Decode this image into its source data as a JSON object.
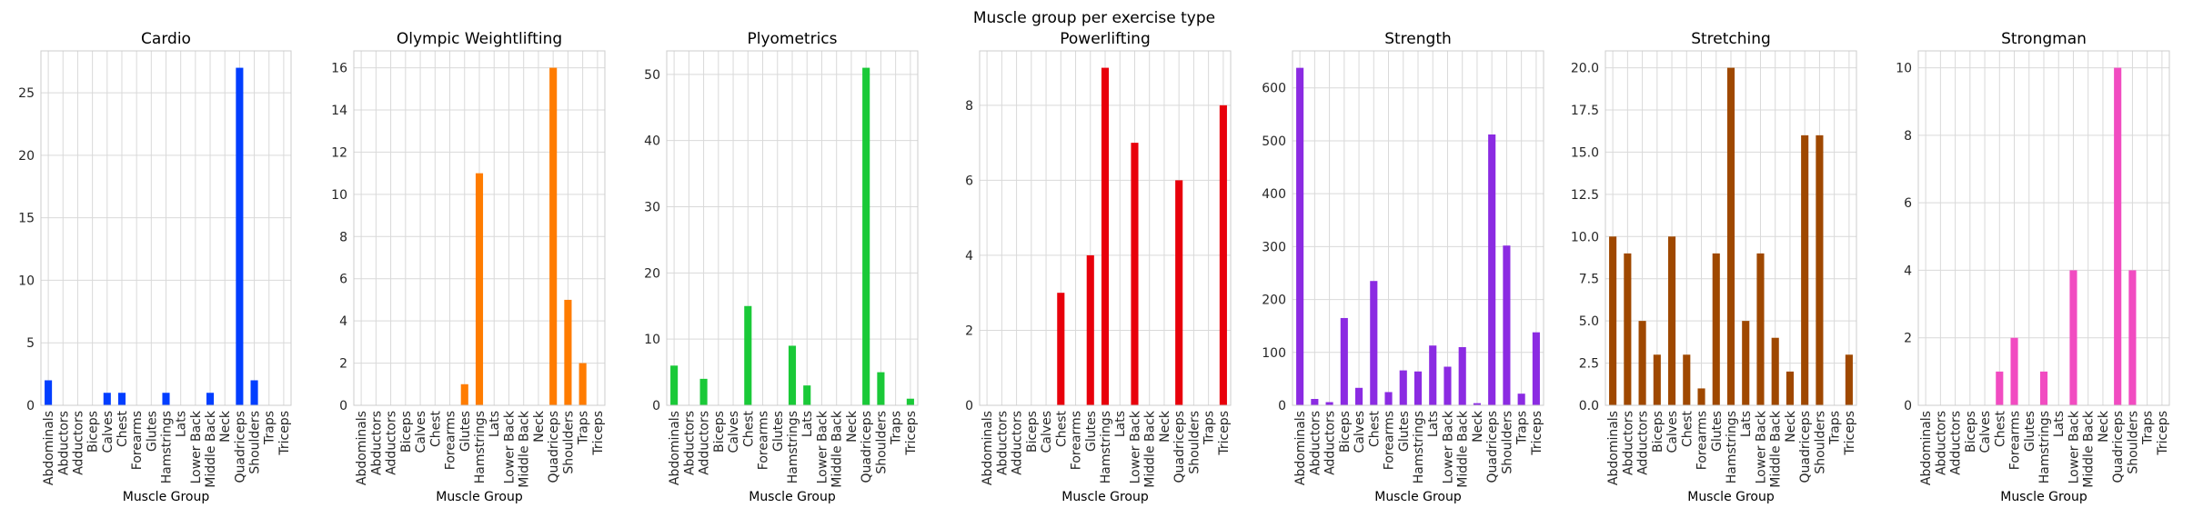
{
  "figure": {
    "title": "Muscle group per exercise type"
  },
  "chart_data": [
    {
      "type": "bar",
      "title": "Cardio",
      "xlabel": "Muscle Group",
      "ylabel": "",
      "categories": [
        "Abdominals",
        "Abductors",
        "Adductors",
        "Biceps",
        "Calves",
        "Chest",
        "Forearms",
        "Glutes",
        "Hamstrings",
        "Lats",
        "Lower Back",
        "Middle Back",
        "Neck",
        "Quadriceps",
        "Shoulders",
        "Traps",
        "Triceps"
      ],
      "values": [
        2,
        0,
        0,
        0,
        1,
        1,
        0,
        0,
        1,
        0,
        0,
        1,
        0,
        27,
        2,
        0,
        0
      ],
      "ylim": [
        0,
        28.35
      ],
      "yticks": [
        0,
        5,
        10,
        15,
        20,
        25
      ],
      "ytick_labels": [
        "0",
        "5",
        "10",
        "15",
        "20",
        "25"
      ],
      "color": "#023eff",
      "grid": true
    },
    {
      "type": "bar",
      "title": "Olympic Weightlifting",
      "xlabel": "Muscle Group",
      "ylabel": "",
      "categories": [
        "Abdominals",
        "Abductors",
        "Adductors",
        "Biceps",
        "Calves",
        "Chest",
        "Forearms",
        "Glutes",
        "Hamstrings",
        "Lats",
        "Lower Back",
        "Middle Back",
        "Neck",
        "Quadriceps",
        "Shoulders",
        "Traps",
        "Triceps"
      ],
      "values": [
        0,
        0,
        0,
        0,
        0,
        0,
        0,
        1,
        11,
        0,
        0,
        0,
        0,
        16,
        5,
        2,
        0
      ],
      "ylim": [
        0,
        16.8
      ],
      "yticks": [
        0,
        2,
        4,
        6,
        8,
        10,
        12,
        14,
        16
      ],
      "ytick_labels": [
        "0",
        "2",
        "4",
        "6",
        "8",
        "10",
        "12",
        "14",
        "16"
      ],
      "color": "#ff7c00",
      "grid": true
    },
    {
      "type": "bar",
      "title": "Plyometrics",
      "xlabel": "Muscle Group",
      "ylabel": "",
      "categories": [
        "Abdominals",
        "Abductors",
        "Adductors",
        "Biceps",
        "Calves",
        "Chest",
        "Forearms",
        "Glutes",
        "Hamstrings",
        "Lats",
        "Lower Back",
        "Middle Back",
        "Neck",
        "Quadriceps",
        "Shoulders",
        "Traps",
        "Triceps"
      ],
      "values": [
        6,
        0,
        4,
        0,
        0,
        15,
        0,
        0,
        9,
        3,
        0,
        0,
        0,
        51,
        5,
        0,
        1
      ],
      "ylim": [
        0,
        53.55
      ],
      "yticks": [
        0,
        10,
        20,
        30,
        40,
        50
      ],
      "ytick_labels": [
        "0",
        "10",
        "20",
        "30",
        "40",
        "50"
      ],
      "color": "#1ac938",
      "grid": true
    },
    {
      "type": "bar",
      "title": "Powerlifting",
      "xlabel": "Muscle Group",
      "ylabel": "",
      "categories": [
        "Abdominals",
        "Abductors",
        "Adductors",
        "Biceps",
        "Calves",
        "Chest",
        "Forearms",
        "Glutes",
        "Hamstrings",
        "Lats",
        "Lower Back",
        "Middle Back",
        "Neck",
        "Quadriceps",
        "Shoulders",
        "Traps",
        "Triceps"
      ],
      "values": [
        0,
        0,
        0,
        0,
        0,
        3,
        0,
        4,
        9,
        0,
        7,
        0,
        0,
        6,
        0,
        0,
        8
      ],
      "ylim": [
        0,
        9.45
      ],
      "yticks": [
        0,
        2,
        4,
        6,
        8
      ],
      "ytick_labels": [
        "0",
        "2",
        "4",
        "6",
        "8"
      ],
      "color": "#e8000b",
      "grid": true
    },
    {
      "type": "bar",
      "title": "Strength",
      "xlabel": "Muscle Group",
      "ylabel": "",
      "categories": [
        "Abdominals",
        "Abductors",
        "Adductors",
        "Biceps",
        "Calves",
        "Chest",
        "Forearms",
        "Glutes",
        "Hamstrings",
        "Lats",
        "Lower Back",
        "Middle Back",
        "Neck",
        "Quadriceps",
        "Shoulders",
        "Traps",
        "Triceps"
      ],
      "values": [
        638,
        12,
        6,
        165,
        33,
        235,
        25,
        66,
        64,
        113,
        73,
        110,
        4,
        512,
        302,
        22,
        138
      ],
      "ylim": [
        0,
        670
      ],
      "yticks": [
        0,
        100,
        200,
        300,
        400,
        500,
        600
      ],
      "ytick_labels": [
        "0",
        "100",
        "200",
        "300",
        "400",
        "500",
        "600"
      ],
      "color": "#8b2be2",
      "grid": true
    },
    {
      "type": "bar",
      "title": "Stretching",
      "xlabel": "Muscle Group",
      "ylabel": "",
      "categories": [
        "Abdominals",
        "Abductors",
        "Adductors",
        "Biceps",
        "Calves",
        "Chest",
        "Forearms",
        "Glutes",
        "Hamstrings",
        "Lats",
        "Lower Back",
        "Middle Back",
        "Neck",
        "Quadriceps",
        "Shoulders",
        "Traps",
        "Triceps"
      ],
      "values": [
        10,
        9,
        5,
        3,
        10,
        3,
        1,
        9,
        20,
        5,
        9,
        4,
        2,
        16,
        16,
        0,
        3
      ],
      "ylim": [
        0,
        21
      ],
      "yticks": [
        0,
        2.5,
        5,
        7.5,
        10,
        12.5,
        15,
        17.5,
        20
      ],
      "ytick_labels": [
        "0.0",
        "2.5",
        "5.0",
        "7.5",
        "10.0",
        "12.5",
        "15.0",
        "17.5",
        "20.0"
      ],
      "color": "#9f4800",
      "grid": true
    },
    {
      "type": "bar",
      "title": "Strongman",
      "xlabel": "Muscle Group",
      "ylabel": "",
      "categories": [
        "Abdominals",
        "Abductors",
        "Adductors",
        "Biceps",
        "Calves",
        "Chest",
        "Forearms",
        "Glutes",
        "Hamstrings",
        "Lats",
        "Lower Back",
        "Middle Back",
        "Neck",
        "Quadriceps",
        "Shoulders",
        "Traps",
        "Triceps"
      ],
      "values": [
        0,
        0,
        0,
        0,
        0,
        1,
        2,
        0,
        1,
        0,
        4,
        0,
        0,
        10,
        4,
        0,
        0
      ],
      "ylim": [
        0,
        10.5
      ],
      "yticks": [
        0,
        2,
        4,
        6,
        8,
        10
      ],
      "ytick_labels": [
        "0",
        "2",
        "4",
        "6",
        "8",
        "10"
      ],
      "color": "#f14cc1",
      "grid": true
    }
  ]
}
